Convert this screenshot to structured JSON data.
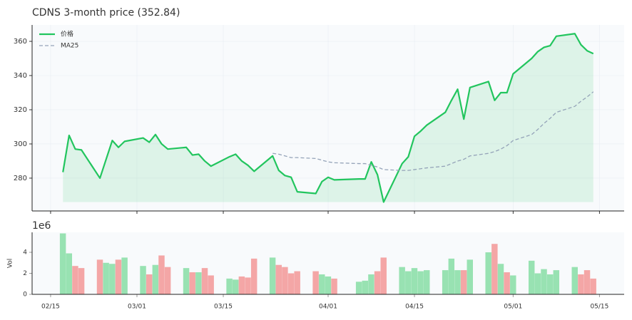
{
  "chart_data": [
    {
      "type": "line",
      "title": "CDNS  3-month price (352.84)",
      "x": [
        "02/17",
        "02/18",
        "02/19",
        "02/20",
        "02/23",
        "02/24",
        "02/25",
        "02/26",
        "02/27",
        "03/02",
        "03/03",
        "03/04",
        "03/05",
        "03/06",
        "03/09",
        "03/10",
        "03/11",
        "03/12",
        "03/13",
        "03/16",
        "03/17",
        "03/18",
        "03/19",
        "03/20",
        "03/23",
        "03/24",
        "03/25",
        "03/26",
        "03/27",
        "03/30",
        "03/31",
        "04/01",
        "04/02",
        "04/06",
        "04/07",
        "04/08",
        "04/09",
        "04/10",
        "04/13",
        "04/14",
        "04/15",
        "04/16",
        "04/17",
        "04/20",
        "04/21",
        "04/22",
        "04/23",
        "04/24",
        "04/27",
        "04/28",
        "04/29",
        "04/30",
        "05/01",
        "05/04",
        "05/05",
        "05/06",
        "05/07",
        "05/08",
        "05/11",
        "05/12",
        "05/13",
        "05/14"
      ],
      "series": [
        {
          "name": "价格",
          "color": "#22c55e",
          "fill": true,
          "values": [
            283.5,
            305,
            297,
            296.5,
            280,
            291,
            302,
            298,
            301.5,
            303.5,
            301,
            305.5,
            300,
            297,
            298,
            293.5,
            294,
            290,
            287,
            292.5,
            294,
            290,
            287.5,
            284,
            293,
            284.5,
            281.5,
            280.5,
            272,
            271,
            278,
            280.5,
            279,
            279.5,
            279.5,
            289.5,
            282,
            266,
            288.5,
            292.5,
            304.5,
            307.5,
            311,
            318.5,
            325.5,
            332,
            314.5,
            333,
            336.5,
            325.5,
            330,
            330,
            341,
            350,
            354,
            356.5,
            357.5,
            363,
            364.5,
            358,
            354.5,
            352.84
          ]
        },
        {
          "name": "MA25",
          "color": "#94a3b8",
          "dashed": true,
          "values": [
            null,
            null,
            null,
            null,
            null,
            null,
            null,
            null,
            null,
            null,
            null,
            null,
            null,
            null,
            null,
            null,
            null,
            null,
            null,
            null,
            null,
            null,
            null,
            null,
            294.5,
            294,
            293,
            292,
            292,
            291.5,
            290.5,
            289.5,
            289,
            288.5,
            288.5,
            287.5,
            286.5,
            285,
            284.5,
            284.5,
            285,
            285.5,
            286,
            287,
            288.5,
            290,
            291,
            293,
            294.5,
            295.5,
            297,
            299,
            302,
            305.5,
            308.5,
            312,
            315,
            318.5,
            322,
            325,
            327.5,
            330.5
          ]
        }
      ],
      "xlim": [
        "02/12",
        "05/19"
      ],
      "ylim": [
        260.8,
        369.6
      ],
      "yticks": [
        280,
        300,
        320,
        340,
        360
      ],
      "grid": true,
      "legend": "upper left"
    },
    {
      "type": "bar",
      "ylabel": "Vol",
      "offset_label": "1e6",
      "x": [
        "02/17",
        "02/18",
        "02/19",
        "02/20",
        "02/23",
        "02/24",
        "02/25",
        "02/26",
        "02/27",
        "03/02",
        "03/03",
        "03/04",
        "03/05",
        "03/06",
        "03/09",
        "03/10",
        "03/11",
        "03/12",
        "03/13",
        "03/16",
        "03/17",
        "03/18",
        "03/19",
        "03/20",
        "03/23",
        "03/24",
        "03/25",
        "03/26",
        "03/27",
        "03/30",
        "03/31",
        "04/01",
        "04/02",
        "04/06",
        "04/07",
        "04/08",
        "04/09",
        "04/10",
        "04/13",
        "04/14",
        "04/15",
        "04/16",
        "04/17",
        "04/20",
        "04/21",
        "04/22",
        "04/23",
        "04/24",
        "04/27",
        "04/28",
        "04/29",
        "04/30",
        "05/01",
        "05/04",
        "05/05",
        "05/06",
        "05/07",
        "05/08",
        "05/11",
        "05/12",
        "05/13",
        "05/14"
      ],
      "values": [
        5.8,
        3.9,
        2.7,
        2.5,
        3.3,
        3.0,
        2.9,
        3.3,
        3.5,
        2.7,
        1.9,
        2.8,
        3.7,
        2.6,
        2.5,
        2.1,
        2.1,
        2.5,
        1.8,
        1.5,
        1.4,
        1.7,
        1.6,
        3.4,
        3.5,
        2.8,
        2.6,
        2.0,
        2.2,
        2.2,
        1.9,
        1.7,
        1.5,
        1.2,
        1.3,
        1.9,
        2.2,
        3.5,
        2.6,
        2.2,
        2.5,
        2.2,
        2.3,
        2.3,
        3.4,
        2.3,
        2.3,
        3.3,
        4.0,
        4.8,
        2.9,
        2.1,
        1.8,
        3.2,
        2.0,
        2.4,
        1.9,
        2.3,
        2.6,
        1.9,
        2.3,
        1.5
      ],
      "colors": [
        "#98e2b2",
        "#98e2b2",
        "#f4a6a6",
        "#f4a6a6",
        "#f4a6a6",
        "#98e2b2",
        "#98e2b2",
        "#f4a6a6",
        "#98e2b2",
        "#98e2b2",
        "#f4a6a6",
        "#98e2b2",
        "#f4a6a6",
        "#f4a6a6",
        "#98e2b2",
        "#f4a6a6",
        "#98e2b2",
        "#f4a6a6",
        "#f4a6a6",
        "#98e2b2",
        "#98e2b2",
        "#f4a6a6",
        "#f4a6a6",
        "#f4a6a6",
        "#98e2b2",
        "#f4a6a6",
        "#f4a6a6",
        "#f4a6a6",
        "#f4a6a6",
        "#f4a6a6",
        "#98e2b2",
        "#98e2b2",
        "#f4a6a6",
        "#98e2b2",
        "#98e2b2",
        "#98e2b2",
        "#f4a6a6",
        "#f4a6a6",
        "#98e2b2",
        "#98e2b2",
        "#98e2b2",
        "#98e2b2",
        "#98e2b2",
        "#98e2b2",
        "#98e2b2",
        "#98e2b2",
        "#f4a6a6",
        "#98e2b2",
        "#98e2b2",
        "#f4a6a6",
        "#98e2b2",
        "#f4a6a6",
        "#98e2b2",
        "#98e2b2",
        "#98e2b2",
        "#98e2b2",
        "#98e2b2",
        "#98e2b2",
        "#98e2b2",
        "#f4a6a6",
        "#f4a6a6",
        "#f4a6a6"
      ],
      "xlim": [
        "02/12",
        "05/19"
      ],
      "xticks": [
        "02/15",
        "03/01",
        "03/15",
        "04/01",
        "04/15",
        "05/01",
        "05/15"
      ],
      "ylim": [
        0,
        5.9
      ],
      "yticks": [
        0,
        2,
        4
      ]
    }
  ]
}
